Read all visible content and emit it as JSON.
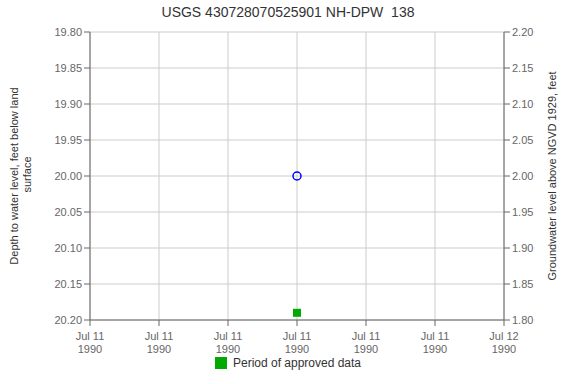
{
  "chart_data": {
    "type": "scatter",
    "title": "USGS 430728070525901 NH-DPW  138",
    "ylabel": "Depth to water level, feet below land\n surface",
    "y2label": "Groundwater level above NGVD 1929, feet",
    "categories": [
      "Jul 11\n1990",
      "Jul 11\n1990",
      "Jul 11\n1990",
      "Jul 11\n1990",
      "Jul 11\n1990",
      "Jul 11\n1990",
      "Jul 12\n1990"
    ],
    "series": [
      {
        "color": "blue",
        "marker": "o",
        "values": [
          null,
          null,
          null,
          20.0,
          null,
          null,
          null
        ]
      },
      {
        "name": "Period of approved data",
        "color": "#00aa00",
        "marker": "s",
        "values": [
          null,
          null,
          null,
          20.19,
          null,
          null,
          null
        ]
      }
    ],
    "ylim": [
      20.2,
      19.8
    ],
    "yticks": [
      {
        "value": 19.8,
        "label": "19.80"
      },
      19.85,
      {
        "value": 19.9,
        "label": "19.90"
      },
      19.95,
      {
        "value": 20,
        "label": "20.00"
      },
      20.05,
      {
        "value": 20.1,
        "label": "20.10"
      },
      20.15,
      {
        "value": 20.2,
        "label": "20.20"
      }
    ],
    "y2lim": [
      1.8,
      2.2
    ],
    "y2ticks": [
      {
        "value": 1.8,
        "label": "1.80"
      },
      1.85,
      {
        "value": 1.9,
        "label": "1.90"
      },
      1.95,
      {
        "value": 2,
        "label": "2.00"
      },
      2.05,
      {
        "value": 2.1,
        "label": "2.10"
      },
      2.15,
      {
        "value": 2.2,
        "label": "2.20"
      }
    ],
    "grid": true,
    "legend": "bottom"
  }
}
